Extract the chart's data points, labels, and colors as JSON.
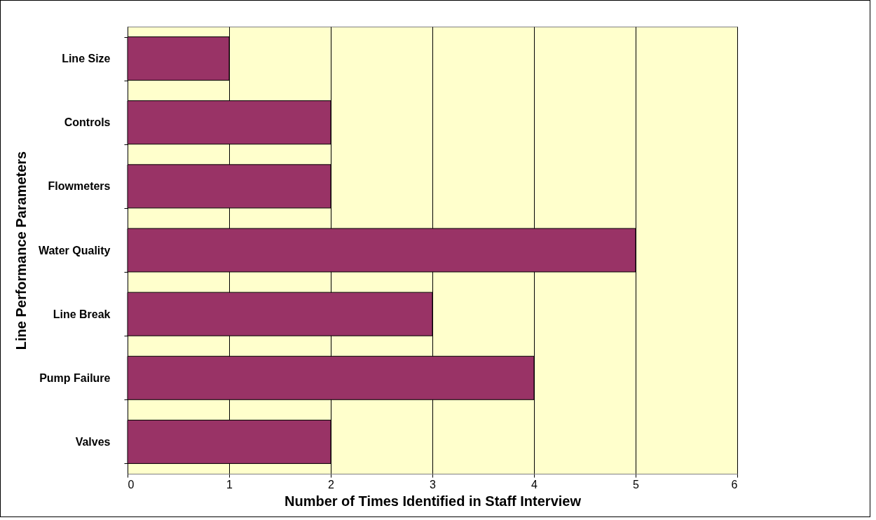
{
  "chart_data": {
    "type": "bar",
    "orientation": "horizontal",
    "xlabel": "Number of Times Identified in Staff Interview",
    "ylabel": "Line Performance Parameters",
    "categories": [
      "Line Size",
      "Controls",
      "Flowmeters",
      "Water Quality",
      "Line Break",
      "Pump Failure",
      "Valves"
    ],
    "values": [
      1,
      2,
      2,
      5,
      3,
      4,
      2
    ],
    "color": "#993366",
    "xlim": [
      0,
      6
    ],
    "xticks": [
      0,
      1,
      2,
      3,
      4,
      5,
      6
    ],
    "grid": "x",
    "legend": false
  }
}
